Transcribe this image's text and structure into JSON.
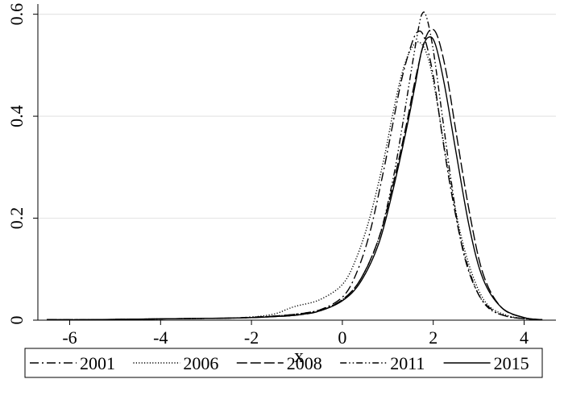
{
  "chart_data": {
    "type": "line",
    "title": "",
    "xlabel": "x",
    "ylabel": "",
    "xlim": [
      -6.7,
      4.7
    ],
    "ylim": [
      0,
      0.62
    ],
    "x_ticks": [
      -6,
      -4,
      -2,
      0,
      2,
      4
    ],
    "y_ticks": [
      0,
      0.2,
      0.4,
      0.6
    ],
    "x_tick_labels": [
      "-6",
      "-4",
      "-2",
      "0",
      "2",
      "4"
    ],
    "y_tick_labels": [
      "0",
      "0.2",
      "0.4",
      "0.6"
    ],
    "grid": true,
    "legend_position": "bottom",
    "series": [
      {
        "name": "2001",
        "dash": "long-dash-dot",
        "x": [
          -6.5,
          -5.5,
          -4.5,
          -3.5,
          -2.5,
          -2,
          -1.5,
          -1,
          -0.5,
          0,
          0.3,
          0.6,
          0.9,
          1.1,
          1.3,
          1.5,
          1.65,
          1.8,
          2,
          2.2,
          2.4,
          2.7,
          3,
          3.3,
          3.6,
          4,
          4.4
        ],
        "y": [
          0.001,
          0.001,
          0.002,
          0.003,
          0.004,
          0.005,
          0.008,
          0.012,
          0.02,
          0.045,
          0.09,
          0.17,
          0.29,
          0.38,
          0.47,
          0.535,
          0.565,
          0.555,
          0.48,
          0.36,
          0.25,
          0.12,
          0.05,
          0.02,
          0.008,
          0.003,
          0.001
        ]
      },
      {
        "name": "2006",
        "dash": "dotted",
        "x": [
          -6.5,
          -5.5,
          -4.5,
          -3.5,
          -2.5,
          -2,
          -1.5,
          -1.2,
          -1,
          -0.5,
          0,
          0.3,
          0.6,
          0.9,
          1.1,
          1.3,
          1.5,
          1.7,
          1.9,
          2.1,
          2.3,
          2.6,
          2.9,
          3.2,
          3.6,
          4,
          4.4
        ],
        "y": [
          0.001,
          0.001,
          0.002,
          0.003,
          0.004,
          0.006,
          0.012,
          0.022,
          0.028,
          0.04,
          0.07,
          0.12,
          0.2,
          0.31,
          0.4,
          0.48,
          0.53,
          0.545,
          0.51,
          0.42,
          0.31,
          0.17,
          0.08,
          0.03,
          0.01,
          0.003,
          0.001
        ]
      },
      {
        "name": "2008",
        "dash": "long-dash",
        "x": [
          -6.5,
          -5.5,
          -4.5,
          -3.5,
          -2.5,
          -2,
          -1.5,
          -1,
          -0.5,
          0,
          0.4,
          0.8,
          1.1,
          1.4,
          1.6,
          1.8,
          1.95,
          2.1,
          2.3,
          2.5,
          2.8,
          3.1,
          3.5,
          4,
          4.4
        ],
        "y": [
          0.001,
          0.001,
          0.002,
          0.003,
          0.004,
          0.005,
          0.007,
          0.01,
          0.018,
          0.04,
          0.08,
          0.16,
          0.26,
          0.38,
          0.47,
          0.545,
          0.57,
          0.555,
          0.48,
          0.37,
          0.21,
          0.09,
          0.025,
          0.005,
          0.001
        ]
      },
      {
        "name": "2011",
        "dash": "dash-dot-dot",
        "x": [
          -6.5,
          -5.5,
          -4.5,
          -3.5,
          -2.5,
          -2,
          -1.5,
          -1,
          -0.5,
          0,
          0.4,
          0.8,
          1.1,
          1.3,
          1.5,
          1.65,
          1.75,
          1.85,
          2,
          2.2,
          2.4,
          2.6,
          2.9,
          3.2,
          3.6,
          4,
          4.4
        ],
        "y": [
          0.001,
          0.001,
          0.002,
          0.003,
          0.004,
          0.006,
          0.008,
          0.012,
          0.02,
          0.04,
          0.08,
          0.16,
          0.27,
          0.37,
          0.48,
          0.56,
          0.6,
          0.595,
          0.53,
          0.4,
          0.27,
          0.16,
          0.07,
          0.025,
          0.008,
          0.003,
          0.001
        ]
      },
      {
        "name": "2015",
        "dash": "solid",
        "x": [
          -6.5,
          -5.5,
          -4.5,
          -3.5,
          -2.5,
          -2,
          -1.5,
          -1,
          -0.5,
          0,
          0.4,
          0.8,
          1.1,
          1.4,
          1.6,
          1.75,
          1.9,
          2.05,
          2.25,
          2.5,
          2.8,
          3.1,
          3.5,
          4,
          4.4
        ],
        "y": [
          0.001,
          0.001,
          0.002,
          0.003,
          0.004,
          0.005,
          0.007,
          0.01,
          0.018,
          0.038,
          0.075,
          0.15,
          0.25,
          0.37,
          0.46,
          0.53,
          0.555,
          0.54,
          0.46,
          0.33,
          0.18,
          0.08,
          0.025,
          0.005,
          0.001
        ]
      }
    ]
  }
}
